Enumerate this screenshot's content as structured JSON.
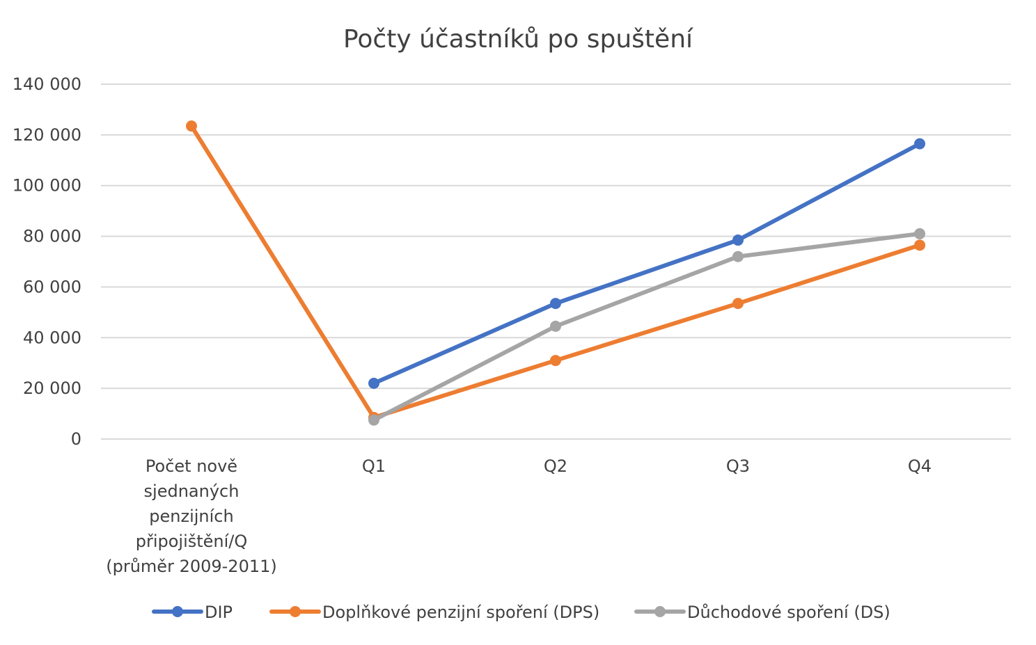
{
  "chart_data": {
    "type": "line",
    "title": "Počty účastníků po spuštění",
    "xlabel": "",
    "ylabel": "",
    "categories": [
      [
        "Počet nově",
        "sjednaných",
        "penzijních",
        "připojištění/Q",
        "(průměr 2009-2011)"
      ],
      [
        "Q1"
      ],
      [
        "Q2"
      ],
      [
        "Q3"
      ],
      [
        "Q4"
      ]
    ],
    "ylim": [
      0,
      140000
    ],
    "yticks": [
      0,
      20000,
      40000,
      60000,
      80000,
      100000,
      120000,
      140000
    ],
    "ytick_labels": [
      "0",
      "20 000",
      "40 000",
      "60 000",
      "80 000",
      "100 000",
      "120 000",
      "140 000"
    ],
    "grid": true,
    "legend_position": "bottom",
    "series": [
      {
        "name": "DIP",
        "color": "#4472c4",
        "values": [
          null,
          22000,
          53500,
          78500,
          116500
        ]
      },
      {
        "name": "Doplňkové penzijní spoření (DPS)",
        "color": "#ed7d31",
        "values": [
          123500,
          8500,
          31000,
          53500,
          76500
        ]
      },
      {
        "name": "Důchodové spoření (DS)",
        "color": "#a5a5a5",
        "values": [
          null,
          7500,
          44500,
          72000,
          81000
        ]
      }
    ]
  }
}
